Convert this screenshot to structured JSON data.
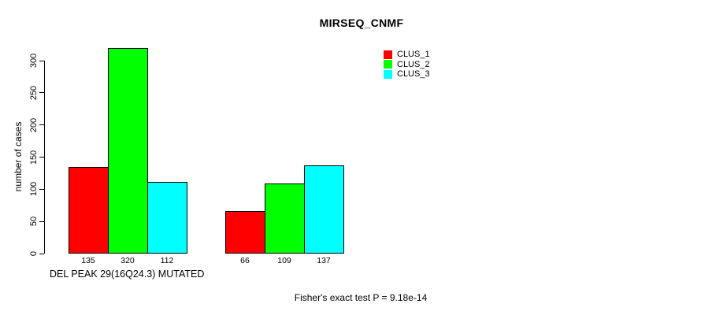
{
  "title": "MIRSEQ_CNMF",
  "y_axis": {
    "label": "number of cases",
    "ticks": [
      "0",
      "50",
      "100",
      "150",
      "200",
      "250",
      "300"
    ]
  },
  "x_axis": {
    "label": "DEL PEAK 29(16Q24.3) MUTATED"
  },
  "stat_note": "Fisher's exact test P = 9.18e-14",
  "legend": {
    "items": [
      {
        "label": "CLUS_1",
        "color": "#FF0000"
      },
      {
        "label": "CLUS_2",
        "color": "#00FF00"
      },
      {
        "label": "CLUS_3",
        "color": "#00FFFF"
      }
    ]
  },
  "chart_data": {
    "type": "bar",
    "title": "MIRSEQ_CNMF",
    "ylabel": "number of cases",
    "xlabel": "DEL PEAK 29(16Q24.3) MUTATED",
    "annotation": "Fisher's exact test P = 9.18e-14",
    "categories": [
      "",
      ""
    ],
    "series": [
      {
        "name": "CLUS_1",
        "color": "#FF0000",
        "values": [
          135,
          66
        ]
      },
      {
        "name": "CLUS_2",
        "color": "#00FF00",
        "values": [
          320,
          109
        ]
      },
      {
        "name": "CLUS_3",
        "color": "#00FFFF",
        "values": [
          112,
          137
        ]
      }
    ],
    "ylim": [
      0,
      300
    ],
    "yticks": [
      0,
      50,
      100,
      150,
      200,
      250,
      300
    ],
    "bar_value_labels_shown": true,
    "legend_position": "top-right",
    "grid": false
  }
}
